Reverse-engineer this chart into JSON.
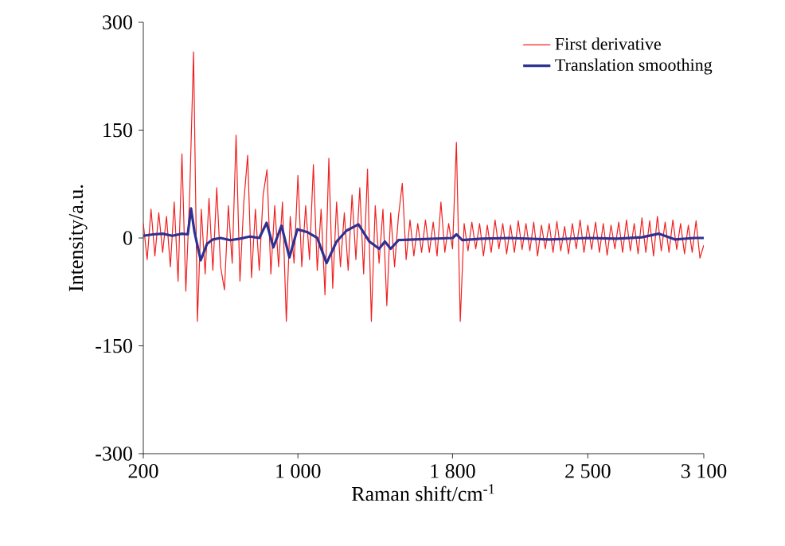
{
  "chart_data": {
    "type": "line",
    "xlabel": "Raman shift/cm$^{-1}$",
    "ylabel": "Intensity/a.u.",
    "xlim": [
      200,
      3100
    ],
    "ylim": [
      -300,
      300
    ],
    "xticks": [
      200,
      {
        "value": 1000,
        "label": "1 000"
      },
      {
        "value": 1800,
        "label": "1 800"
      },
      {
        "value": 2500,
        "label": "2 500"
      },
      {
        "value": 3100,
        "label": "3 100"
      }
    ],
    "yticks": [
      -300,
      -150,
      0,
      150,
      300
    ],
    "legend": "top right",
    "grid": false,
    "marker": "none",
    "line_style": "solid",
    "series": [
      {
        "name": "First derivative",
        "color": "#f02020",
        "x": [
          200,
          220,
          240,
          260,
          280,
          300,
          320,
          340,
          360,
          380,
          400,
          420,
          440,
          460,
          480,
          500,
          520,
          540,
          560,
          580,
          600,
          620,
          640,
          660,
          680,
          700,
          720,
          740,
          760,
          780,
          800,
          820,
          840,
          860,
          880,
          900,
          920,
          940,
          960,
          980,
          1000,
          1020,
          1040,
          1060,
          1080,
          1100,
          1120,
          1140,
          1160,
          1180,
          1200,
          1220,
          1240,
          1260,
          1280,
          1300,
          1320,
          1340,
          1360,
          1380,
          1400,
          1420,
          1440,
          1460,
          1480,
          1500,
          1520,
          1540,
          1560,
          1580,
          1600,
          1620,
          1640,
          1660,
          1680,
          1700,
          1720,
          1740,
          1760,
          1780,
          1800,
          1820,
          1840,
          1860,
          1880,
          1900,
          1920,
          1940,
          1960,
          1980,
          2000,
          2020,
          2040,
          2060,
          2080,
          2100,
          2120,
          2140,
          2160,
          2180,
          2200,
          2220,
          2240,
          2260,
          2280,
          2300,
          2320,
          2340,
          2360,
          2380,
          2400,
          2420,
          2440,
          2460,
          2480,
          2500,
          2520,
          2540,
          2560,
          2580,
          2600,
          2620,
          2640,
          2660,
          2680,
          2700,
          2720,
          2740,
          2760,
          2780,
          2800,
          2820,
          2840,
          2860,
          2880,
          2900,
          2920,
          2940,
          2960,
          2980,
          3000,
          3020,
          3040,
          3060,
          3080,
          3100
        ],
        "values": [
          20,
          -30,
          40,
          -25,
          35,
          -20,
          30,
          -40,
          50,
          -60,
          117,
          -74,
          60,
          259,
          -116,
          40,
          -50,
          55,
          -45,
          70,
          -40,
          -72,
          45,
          -35,
          143,
          -60,
          50,
          115,
          -55,
          40,
          -45,
          60,
          95,
          -50,
          45,
          -40,
          50,
          -116,
          30,
          -35,
          87,
          -40,
          45,
          -30,
          102,
          -45,
          40,
          -79,
          111,
          -70,
          50,
          -40,
          35,
          -45,
          60,
          -30,
          70,
          -50,
          96,
          -116,
          45,
          -35,
          40,
          -94,
          35,
          -40,
          30,
          76,
          -30,
          25,
          -25,
          20,
          -20,
          25,
          -20,
          22,
          -25,
          50,
          -20,
          20,
          -15,
          133,
          -116,
          20,
          -18,
          22,
          -15,
          20,
          -25,
          18,
          -20,
          25,
          -15,
          20,
          -22,
          18,
          -20,
          24,
          -16,
          20,
          -18,
          22,
          -25,
          18,
          -15,
          20,
          -20,
          23,
          -18,
          16,
          -22,
          20,
          -15,
          25,
          -20,
          18,
          -16,
          22,
          -20,
          20,
          -24,
          18,
          -15,
          22,
          -20,
          25,
          -18,
          20,
          -22,
          28,
          -20,
          24,
          -25,
          30,
          -18,
          22,
          -20,
          25,
          -16,
          20,
          -22,
          18,
          -20,
          24,
          -28,
          -10
        ]
      },
      {
        "name": "Translation smoothing",
        "color": "#2e3192",
        "x": [
          200,
          250,
          300,
          350,
          400,
          430,
          447,
          465,
          497,
          530,
          560,
          600,
          650,
          700,
          750,
          800,
          838,
          873,
          915,
          956,
          997,
          1050,
          1100,
          1148,
          1200,
          1250,
          1313,
          1370,
          1420,
          1450,
          1480,
          1520,
          1600,
          1700,
          1800,
          1820,
          1850,
          1950,
          2100,
          2300,
          2500,
          2650,
          2780,
          2866,
          2950,
          3050,
          3100
        ],
        "values": [
          3,
          5,
          6,
          3,
          6,
          5,
          41,
          8,
          -31,
          -8,
          -2,
          0,
          -3,
          -1,
          2,
          0,
          21,
          -13,
          17,
          -27,
          12,
          8,
          0,
          -35,
          -5,
          10,
          19,
          -5,
          -15,
          -5,
          -15,
          -3,
          -2,
          -1,
          0,
          5,
          -3,
          -1,
          0,
          -2,
          0,
          -1,
          1,
          6,
          -2,
          0,
          0
        ]
      }
    ]
  }
}
